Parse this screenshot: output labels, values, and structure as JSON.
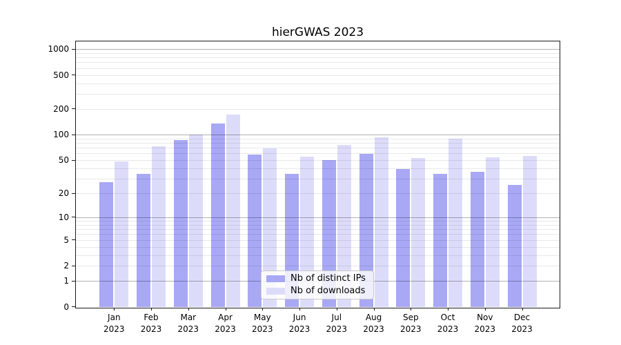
{
  "chart_data": {
    "type": "bar",
    "title": "hierGWAS 2023",
    "categories": [
      "Jan 2023",
      "Feb 2023",
      "Mar 2023",
      "Apr 2023",
      "May 2023",
      "Jun 2023",
      "Jul 2023",
      "Aug 2023",
      "Sep 2023",
      "Oct 2023",
      "Nov 2023",
      "Dec 2023"
    ],
    "series": [
      {
        "name": "Nb of distinct IPs",
        "color": "#a8a8f5",
        "values": [
          27,
          34,
          86,
          135,
          58,
          34,
          50,
          59,
          39,
          34,
          36,
          25
        ]
      },
      {
        "name": "Nb of downloads",
        "color": "#dcdcfa",
        "values": [
          48,
          73,
          101,
          172,
          69,
          55,
          76,
          93,
          53,
          90,
          54,
          56
        ]
      }
    ],
    "yscale": "log10(1+v)",
    "yticks": [
      0,
      1,
      2,
      5,
      10,
      20,
      50,
      100,
      200,
      500,
      1000
    ],
    "ylim": [
      0,
      1250
    ],
    "xlabel": "",
    "ylabel": "",
    "grid": "major and minor horizontal gridlines",
    "legend_position": "lower center, inside plot"
  }
}
